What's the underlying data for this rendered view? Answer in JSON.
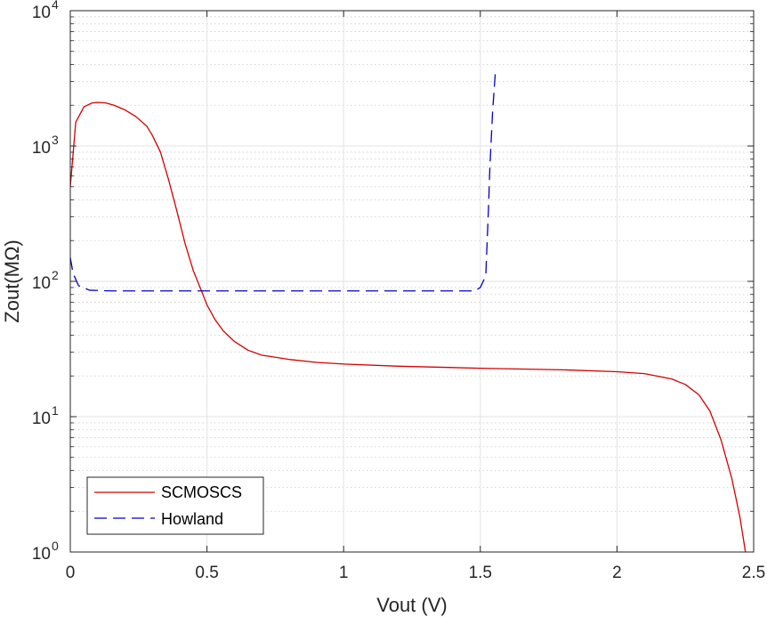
{
  "chart_data": {
    "type": "line",
    "title": "",
    "xlabel": "Vout (V)",
    "ylabel": "Zout(MΩ)",
    "xlim": [
      0,
      2.5
    ],
    "ylim": [
      1,
      10000
    ],
    "yscale": "log",
    "grid": true,
    "minor_grid": true,
    "legend_position": "bottom-left",
    "x_ticks": [
      {
        "value": 0,
        "label": "0"
      },
      {
        "value": 0.5,
        "label": "0.5"
      },
      {
        "value": 1,
        "label": "1"
      },
      {
        "value": 1.5,
        "label": "1.5"
      },
      {
        "value": 2,
        "label": "2"
      },
      {
        "value": 2.5,
        "label": "2.5"
      }
    ],
    "y_ticks": [
      {
        "value": 1,
        "base": "10",
        "exp": "0"
      },
      {
        "value": 10,
        "base": "10",
        "exp": "1"
      },
      {
        "value": 100,
        "base": "10",
        "exp": "2"
      },
      {
        "value": 1000,
        "base": "10",
        "exp": "3"
      },
      {
        "value": 10000,
        "base": "10",
        "exp": "4"
      }
    ],
    "series": [
      {
        "name": "SCMOSCS",
        "color": "#d40000",
        "dash": "solid",
        "x": [
          0,
          0.02,
          0.05,
          0.08,
          0.1,
          0.13,
          0.16,
          0.2,
          0.24,
          0.28,
          0.3,
          0.33,
          0.36,
          0.39,
          0.42,
          0.45,
          0.48,
          0.5,
          0.53,
          0.56,
          0.6,
          0.65,
          0.7,
          0.8,
          0.9,
          1.0,
          1.2,
          1.5,
          1.8,
          2.0,
          2.1,
          2.2,
          2.25,
          2.3,
          2.34,
          2.38,
          2.42,
          2.45,
          2.47
        ],
        "y": [
          500,
          1500,
          1950,
          2080,
          2100,
          2080,
          2000,
          1850,
          1650,
          1400,
          1200,
          900,
          560,
          330,
          190,
          120,
          85,
          67,
          52,
          43,
          36,
          31,
          28.5,
          26.5,
          25.2,
          24.5,
          23.6,
          22.8,
          22.2,
          21.5,
          20.8,
          19.0,
          17.3,
          14.5,
          11.0,
          6.8,
          3.5,
          1.8,
          1.0
        ]
      },
      {
        "name": "Howland",
        "color": "#0000cc",
        "dash": "dashed",
        "x": [
          0,
          0.01,
          0.03,
          0.07,
          0.15,
          0.5,
          1.0,
          1.48,
          1.5,
          1.52,
          1.53,
          1.535,
          1.545,
          1.555
        ],
        "y": [
          150,
          115,
          93,
          86,
          85,
          85,
          85,
          85,
          90,
          110,
          350,
          700,
          1800,
          3500
        ]
      }
    ]
  }
}
